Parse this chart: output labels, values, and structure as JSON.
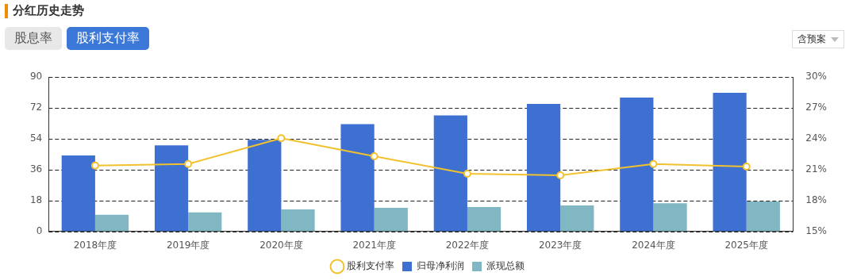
{
  "chart_data": {
    "type": "bar",
    "title": "分红历史走势",
    "annotations": [
      "股息率",
      "股利支付率",
      "含预案"
    ],
    "categories": [
      "2018年度",
      "2019年度",
      "2020年度",
      "2021年度",
      "2022年度",
      "2023年度",
      "2024年度",
      "2025年度"
    ],
    "series": [
      {
        "name": "归母净利润",
        "color": "#3d70d1",
        "values": [
          44.3,
          50.2,
          53.4,
          62.6,
          67.6,
          74.4,
          78.1,
          80.8
        ]
      },
      {
        "name": "派现总额",
        "color": "#80b7c3",
        "values": [
          9.6,
          11,
          12.8,
          13.7,
          14.2,
          15.1,
          16.4,
          17.4
        ]
      },
      {
        "name": "股利支付率",
        "type": "line",
        "axis": "y2",
        "color": "#f2c12e",
        "values": [
          21.4,
          21.55,
          24.06,
          22.3,
          20.6,
          20.45,
          21.55,
          21.3
        ]
      }
    ],
    "ylim": [
      0,
      90
    ],
    "yticks": [
      0,
      18,
      36,
      54,
      72,
      90
    ],
    "y2lim": [
      15,
      30
    ],
    "y2ticks": [
      {
        "value": 15,
        "label": "15%"
      },
      {
        "value": 18,
        "label": "18%"
      },
      {
        "value": 21,
        "label": "21%"
      },
      {
        "value": 24,
        "label": "24%"
      },
      {
        "value": 27,
        "label": "27%"
      },
      {
        "value": 30,
        "label": "30%"
      }
    ],
    "grid": "y",
    "legend": "bottom",
    "marker": "circle",
    "line_style": "solid"
  }
}
